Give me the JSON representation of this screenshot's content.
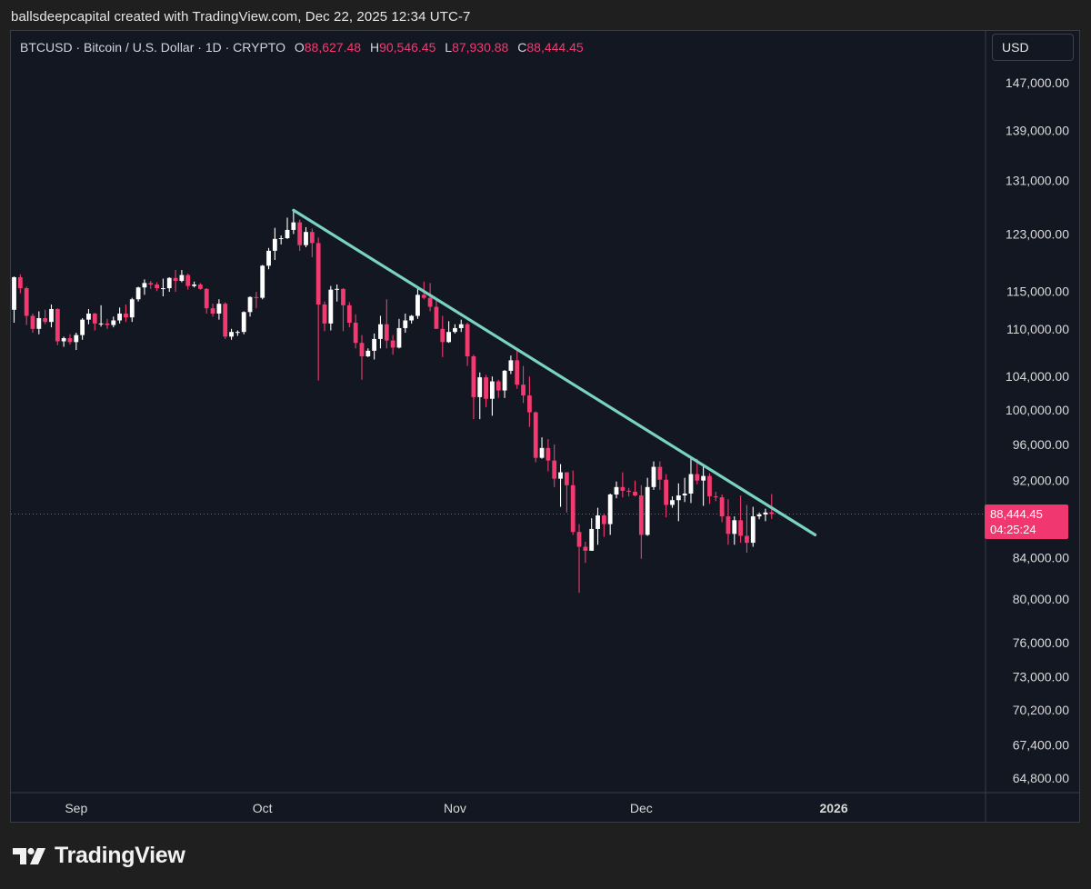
{
  "caption": "ballsdeepcapital created with TradingView.com, Dec 22, 2025 12:34 UTC-7",
  "legend": {
    "symbol": "BTCUSD · Bitcoin / U.S. Dollar · 1D · CRYPTO",
    "open_label": "O",
    "open": "88,627.48",
    "high_label": "H",
    "high": "90,546.45",
    "low_label": "L",
    "low": "87,930.88",
    "close_label": "C",
    "close": "88,444.45"
  },
  "currency": "USD",
  "price_tag": {
    "price": "88,444.45",
    "countdown": "04:25:24"
  },
  "brand": {
    "name": "TradingView",
    "logo_icon": "tradingview-logo-icon"
  },
  "colors": {
    "up": "#ffffff",
    "down": "#f23a70",
    "trendline": "#79d3c3",
    "background": "#131722",
    "axis_text": "#d9d9d9"
  },
  "chart_data": {
    "type": "candlestick",
    "scale": "log",
    "ylim": [
      64000,
      152000
    ],
    "y_ticks": [
      "147,000.00",
      "139,000.00",
      "131,000.00",
      "123,000.00",
      "115,000.00",
      "110,000.00",
      "104,000.00",
      "100,000.00",
      "96,000.00",
      "92,000.00",
      "84,000.00",
      "80,000.00",
      "76,000.00",
      "73,000.00",
      "70,200.00",
      "67,400.00",
      "64,800.00"
    ],
    "x_ticks": [
      {
        "label": "Sep",
        "date": "2025-09-01"
      },
      {
        "label": "Oct",
        "date": "2025-10-01"
      },
      {
        "label": "Nov",
        "date": "2025-11-01"
      },
      {
        "label": "Dec",
        "date": "2025-12-01"
      },
      {
        "label": "2026",
        "date": "2026-01-01",
        "bold": true
      }
    ],
    "last_price": 88444.45,
    "trendline": {
      "from": {
        "date": "2025-10-06",
        "price": 126500
      },
      "to": {
        "date": "2025-12-29",
        "price": 86300
      }
    },
    "candles": [
      {
        "d": "2025-08-22",
        "o": 112500,
        "h": 117000,
        "l": 110800,
        "c": 116900
      },
      {
        "d": "2025-08-23",
        "o": 116900,
        "h": 117300,
        "l": 114700,
        "c": 115400
      },
      {
        "d": "2025-08-24",
        "o": 115400,
        "h": 115600,
        "l": 110500,
        "c": 111700
      },
      {
        "d": "2025-08-25",
        "o": 111700,
        "h": 112000,
        "l": 109500,
        "c": 110000
      },
      {
        "d": "2025-08-26",
        "o": 110000,
        "h": 112300,
        "l": 109300,
        "c": 111400
      },
      {
        "d": "2025-08-27",
        "o": 111400,
        "h": 112500,
        "l": 110600,
        "c": 110900
      },
      {
        "d": "2025-08-28",
        "o": 110900,
        "h": 113200,
        "l": 110200,
        "c": 112600
      },
      {
        "d": "2025-08-29",
        "o": 112600,
        "h": 112700,
        "l": 107900,
        "c": 108400
      },
      {
        "d": "2025-08-30",
        "o": 108400,
        "h": 109000,
        "l": 107700,
        "c": 108800
      },
      {
        "d": "2025-08-31",
        "o": 108800,
        "h": 109300,
        "l": 108000,
        "c": 108300
      },
      {
        "d": "2025-09-01",
        "o": 108300,
        "h": 109500,
        "l": 107300,
        "c": 109200
      },
      {
        "d": "2025-09-02",
        "o": 109200,
        "h": 111400,
        "l": 108600,
        "c": 111200
      },
      {
        "d": "2025-09-03",
        "o": 111200,
        "h": 112600,
        "l": 110600,
        "c": 112000
      },
      {
        "d": "2025-09-04",
        "o": 112000,
        "h": 112100,
        "l": 109800,
        "c": 110700
      },
      {
        "d": "2025-09-05",
        "o": 110700,
        "h": 113100,
        "l": 110300,
        "c": 110700
      },
      {
        "d": "2025-09-06",
        "o": 110700,
        "h": 111300,
        "l": 110000,
        "c": 110500
      },
      {
        "d": "2025-09-07",
        "o": 110500,
        "h": 111600,
        "l": 110200,
        "c": 111100
      },
      {
        "d": "2025-09-08",
        "o": 111100,
        "h": 112800,
        "l": 110700,
        "c": 112000
      },
      {
        "d": "2025-09-09",
        "o": 112000,
        "h": 113200,
        "l": 110900,
        "c": 111500
      },
      {
        "d": "2025-09-10",
        "o": 111500,
        "h": 114100,
        "l": 110900,
        "c": 113900
      },
      {
        "d": "2025-09-11",
        "o": 113900,
        "h": 115600,
        "l": 113600,
        "c": 115500
      },
      {
        "d": "2025-09-12",
        "o": 115500,
        "h": 116600,
        "l": 114500,
        "c": 116100
      },
      {
        "d": "2025-09-13",
        "o": 116100,
        "h": 116400,
        "l": 115300,
        "c": 115900
      },
      {
        "d": "2025-09-14",
        "o": 115900,
        "h": 116200,
        "l": 115000,
        "c": 115400
      },
      {
        "d": "2025-09-15",
        "o": 115400,
        "h": 116700,
        "l": 114300,
        "c": 115400
      },
      {
        "d": "2025-09-16",
        "o": 115400,
        "h": 116900,
        "l": 114900,
        "c": 116800
      },
      {
        "d": "2025-09-17",
        "o": 116800,
        "h": 117900,
        "l": 114900,
        "c": 116400
      },
      {
        "d": "2025-09-18",
        "o": 116400,
        "h": 117900,
        "l": 116200,
        "c": 117200
      },
      {
        "d": "2025-09-19",
        "o": 117200,
        "h": 117400,
        "l": 115200,
        "c": 115700
      },
      {
        "d": "2025-09-20",
        "o": 115700,
        "h": 116300,
        "l": 115500,
        "c": 115900
      },
      {
        "d": "2025-09-21",
        "o": 115900,
        "h": 116100,
        "l": 115200,
        "c": 115300
      },
      {
        "d": "2025-09-22",
        "o": 115300,
        "h": 115400,
        "l": 112000,
        "c": 112700
      },
      {
        "d": "2025-09-23",
        "o": 112700,
        "h": 113300,
        "l": 111600,
        "c": 112000
      },
      {
        "d": "2025-09-24",
        "o": 112000,
        "h": 113900,
        "l": 111200,
        "c": 113300
      },
      {
        "d": "2025-09-25",
        "o": 113300,
        "h": 113500,
        "l": 108700,
        "c": 109000
      },
      {
        "d": "2025-09-26",
        "o": 109000,
        "h": 110000,
        "l": 108600,
        "c": 109600
      },
      {
        "d": "2025-09-27",
        "o": 109600,
        "h": 109800,
        "l": 109100,
        "c": 109600
      },
      {
        "d": "2025-09-28",
        "o": 109600,
        "h": 112300,
        "l": 109300,
        "c": 112200
      },
      {
        "d": "2025-09-29",
        "o": 112200,
        "h": 114300,
        "l": 111600,
        "c": 114200
      },
      {
        "d": "2025-09-30",
        "o": 114200,
        "h": 114900,
        "l": 112700,
        "c": 114100
      },
      {
        "d": "2025-10-01",
        "o": 114100,
        "h": 118600,
        "l": 113900,
        "c": 118500
      },
      {
        "d": "2025-10-02",
        "o": 118500,
        "h": 121000,
        "l": 118000,
        "c": 120600
      },
      {
        "d": "2025-10-03",
        "o": 120600,
        "h": 123900,
        "l": 119300,
        "c": 122300
      },
      {
        "d": "2025-10-04",
        "o": 122300,
        "h": 122800,
        "l": 121500,
        "c": 122400
      },
      {
        "d": "2025-10-05",
        "o": 122400,
        "h": 125400,
        "l": 122300,
        "c": 123600
      },
      {
        "d": "2025-10-06",
        "o": 123600,
        "h": 126500,
        "l": 123000,
        "c": 124700
      },
      {
        "d": "2025-10-07",
        "o": 124700,
        "h": 125100,
        "l": 120600,
        "c": 121400
      },
      {
        "d": "2025-10-08",
        "o": 121400,
        "h": 124000,
        "l": 121100,
        "c": 123300
      },
      {
        "d": "2025-10-09",
        "o": 123300,
        "h": 123800,
        "l": 119700,
        "c": 121700
      },
      {
        "d": "2025-10-10",
        "o": 121700,
        "h": 122500,
        "l": 103500,
        "c": 113200
      },
      {
        "d": "2025-10-11",
        "o": 113200,
        "h": 113600,
        "l": 109700,
        "c": 110700
      },
      {
        "d": "2025-10-12",
        "o": 110700,
        "h": 115700,
        "l": 109800,
        "c": 115200
      },
      {
        "d": "2025-10-13",
        "o": 115200,
        "h": 115900,
        "l": 113600,
        "c": 115300
      },
      {
        "d": "2025-10-14",
        "o": 115300,
        "h": 115400,
        "l": 109700,
        "c": 113100
      },
      {
        "d": "2025-10-15",
        "o": 113100,
        "h": 113500,
        "l": 110200,
        "c": 110800
      },
      {
        "d": "2025-10-16",
        "o": 110800,
        "h": 111900,
        "l": 107500,
        "c": 108200
      },
      {
        "d": "2025-10-17",
        "o": 108200,
        "h": 109200,
        "l": 103600,
        "c": 106500
      },
      {
        "d": "2025-10-18",
        "o": 106500,
        "h": 107500,
        "l": 106400,
        "c": 107200
      },
      {
        "d": "2025-10-19",
        "o": 107200,
        "h": 109400,
        "l": 106100,
        "c": 108700
      },
      {
        "d": "2025-10-20",
        "o": 108700,
        "h": 111700,
        "l": 107500,
        "c": 110600
      },
      {
        "d": "2025-10-21",
        "o": 110600,
        "h": 113900,
        "l": 107500,
        "c": 108500
      },
      {
        "d": "2025-10-22",
        "o": 108500,
        "h": 109200,
        "l": 106700,
        "c": 107600
      },
      {
        "d": "2025-10-23",
        "o": 107600,
        "h": 111300,
        "l": 107500,
        "c": 110100
      },
      {
        "d": "2025-10-24",
        "o": 110100,
        "h": 112000,
        "l": 109500,
        "c": 111100
      },
      {
        "d": "2025-10-25",
        "o": 111100,
        "h": 111800,
        "l": 110700,
        "c": 111700
      },
      {
        "d": "2025-10-26",
        "o": 111700,
        "h": 115400,
        "l": 111300,
        "c": 114500
      },
      {
        "d": "2025-10-27",
        "o": 114500,
        "h": 116300,
        "l": 113900,
        "c": 114100
      },
      {
        "d": "2025-10-28",
        "o": 114100,
        "h": 116100,
        "l": 112300,
        "c": 112900
      },
      {
        "d": "2025-10-29",
        "o": 112900,
        "h": 113700,
        "l": 110000,
        "c": 110000
      },
      {
        "d": "2025-10-30",
        "o": 110000,
        "h": 111700,
        "l": 106400,
        "c": 108300
      },
      {
        "d": "2025-10-31",
        "o": 108300,
        "h": 111000,
        "l": 108200,
        "c": 109600
      },
      {
        "d": "2025-11-01",
        "o": 109600,
        "h": 110600,
        "l": 109400,
        "c": 110100
      },
      {
        "d": "2025-11-02",
        "o": 110100,
        "h": 111200,
        "l": 109600,
        "c": 110600
      },
      {
        "d": "2025-11-03",
        "o": 110600,
        "h": 110800,
        "l": 105300,
        "c": 106500
      },
      {
        "d": "2025-11-04",
        "o": 106500,
        "h": 106700,
        "l": 98900,
        "c": 101500
      },
      {
        "d": "2025-11-05",
        "o": 101500,
        "h": 104500,
        "l": 98900,
        "c": 103900
      },
      {
        "d": "2025-11-06",
        "o": 103900,
        "h": 104200,
        "l": 100300,
        "c": 101300
      },
      {
        "d": "2025-11-07",
        "o": 101300,
        "h": 104000,
        "l": 99300,
        "c": 103400
      },
      {
        "d": "2025-11-08",
        "o": 103400,
        "h": 103600,
        "l": 101400,
        "c": 102300
      },
      {
        "d": "2025-11-09",
        "o": 102300,
        "h": 104800,
        "l": 101400,
        "c": 104700
      },
      {
        "d": "2025-11-10",
        "o": 104700,
        "h": 106600,
        "l": 104300,
        "c": 106000
      },
      {
        "d": "2025-11-11",
        "o": 106000,
        "h": 107500,
        "l": 102500,
        "c": 103000
      },
      {
        "d": "2025-11-12",
        "o": 103000,
        "h": 105300,
        "l": 100800,
        "c": 101700
      },
      {
        "d": "2025-11-13",
        "o": 101700,
        "h": 104000,
        "l": 98000,
        "c": 99700
      },
      {
        "d": "2025-11-14",
        "o": 99700,
        "h": 99800,
        "l": 94000,
        "c": 94500
      },
      {
        "d": "2025-11-15",
        "o": 94500,
        "h": 96800,
        "l": 94400,
        "c": 95600
      },
      {
        "d": "2025-11-16",
        "o": 95600,
        "h": 96600,
        "l": 93000,
        "c": 94200
      },
      {
        "d": "2025-11-17",
        "o": 94200,
        "h": 96000,
        "l": 91300,
        "c": 92200
      },
      {
        "d": "2025-11-18",
        "o": 92200,
        "h": 93800,
        "l": 89200,
        "c": 92900
      },
      {
        "d": "2025-11-19",
        "o": 92900,
        "h": 92900,
        "l": 88600,
        "c": 91500
      },
      {
        "d": "2025-11-20",
        "o": 91500,
        "h": 93100,
        "l": 86300,
        "c": 86600
      },
      {
        "d": "2025-11-21",
        "o": 86600,
        "h": 87400,
        "l": 80600,
        "c": 85100
      },
      {
        "d": "2025-11-22",
        "o": 85100,
        "h": 85600,
        "l": 83500,
        "c": 84700
      },
      {
        "d": "2025-11-23",
        "o": 84700,
        "h": 88000,
        "l": 84700,
        "c": 86900
      },
      {
        "d": "2025-11-24",
        "o": 86900,
        "h": 89100,
        "l": 85300,
        "c": 88300
      },
      {
        "d": "2025-11-25",
        "o": 88300,
        "h": 88500,
        "l": 86100,
        "c": 87400
      },
      {
        "d": "2025-11-26",
        "o": 87400,
        "h": 90600,
        "l": 86300,
        "c": 90500
      },
      {
        "d": "2025-11-27",
        "o": 90500,
        "h": 91900,
        "l": 90100,
        "c": 91300
      },
      {
        "d": "2025-11-28",
        "o": 91300,
        "h": 92900,
        "l": 90200,
        "c": 90900
      },
      {
        "d": "2025-11-29",
        "o": 90900,
        "h": 91200,
        "l": 90300,
        "c": 90800
      },
      {
        "d": "2025-11-30",
        "o": 90800,
        "h": 92000,
        "l": 90300,
        "c": 90400
      },
      {
        "d": "2025-12-01",
        "o": 90400,
        "h": 91500,
        "l": 83900,
        "c": 86300
      },
      {
        "d": "2025-12-02",
        "o": 86300,
        "h": 92300,
        "l": 86200,
        "c": 91300
      },
      {
        "d": "2025-12-03",
        "o": 91300,
        "h": 94100,
        "l": 91000,
        "c": 93500
      },
      {
        "d": "2025-12-04",
        "o": 93500,
        "h": 94100,
        "l": 91000,
        "c": 92100
      },
      {
        "d": "2025-12-05",
        "o": 92100,
        "h": 92700,
        "l": 88100,
        "c": 89400
      },
      {
        "d": "2025-12-06",
        "o": 89400,
        "h": 90300,
        "l": 89100,
        "c": 89900
      },
      {
        "d": "2025-12-07",
        "o": 89900,
        "h": 91700,
        "l": 87700,
        "c": 90400
      },
      {
        "d": "2025-12-08",
        "o": 90400,
        "h": 92300,
        "l": 89700,
        "c": 90600
      },
      {
        "d": "2025-12-09",
        "o": 90600,
        "h": 94600,
        "l": 89600,
        "c": 92700
      },
      {
        "d": "2025-12-10",
        "o": 92700,
        "h": 94400,
        "l": 91600,
        "c": 92000
      },
      {
        "d": "2025-12-11",
        "o": 92000,
        "h": 93600,
        "l": 89300,
        "c": 92500
      },
      {
        "d": "2025-12-12",
        "o": 92500,
        "h": 92800,
        "l": 89500,
        "c": 90300
      },
      {
        "d": "2025-12-13",
        "o": 90300,
        "h": 90800,
        "l": 89800,
        "c": 90200
      },
      {
        "d": "2025-12-14",
        "o": 90200,
        "h": 90500,
        "l": 87600,
        "c": 88200
      },
      {
        "d": "2025-12-15",
        "o": 88200,
        "h": 90000,
        "l": 85300,
        "c": 86400
      },
      {
        "d": "2025-12-16",
        "o": 86400,
        "h": 88200,
        "l": 85300,
        "c": 87800
      },
      {
        "d": "2025-12-17",
        "o": 87800,
        "h": 90400,
        "l": 85500,
        "c": 86200
      },
      {
        "d": "2025-12-18",
        "o": 86200,
        "h": 89400,
        "l": 84500,
        "c": 85500
      },
      {
        "d": "2025-12-19",
        "o": 85500,
        "h": 89200,
        "l": 85100,
        "c": 88200
      },
      {
        "d": "2025-12-20",
        "o": 88200,
        "h": 88600,
        "l": 87900,
        "c": 88400
      },
      {
        "d": "2025-12-21",
        "o": 88400,
        "h": 89000,
        "l": 87700,
        "c": 88600
      },
      {
        "d": "2025-12-22",
        "o": 88627.48,
        "h": 90546.45,
        "l": 87930.88,
        "c": 88444.45
      }
    ]
  }
}
